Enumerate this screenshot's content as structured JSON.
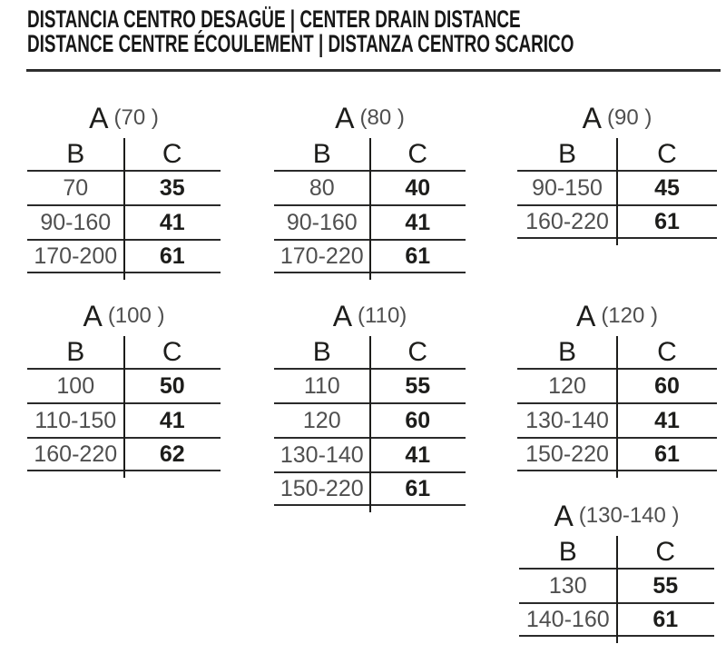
{
  "page": {
    "title_line1": "DISTANCIA CENTRO DESAGÜE | CENTER DRAIN DISTANCE",
    "title_line2": "DISTANCE CENTRE ÉCOULEMENT | DISTANZA CENTRO SCARICO"
  },
  "colors": {
    "ink": "#1d1d1b",
    "muted_gray": "#4f4f4f",
    "rule": "#2e2e2e"
  },
  "columns": {
    "b": "B",
    "c": "C"
  },
  "tables": [
    {
      "label": "A",
      "size": "(70 )",
      "rows": [
        {
          "b": "70",
          "c": "35"
        },
        {
          "b": "90-160",
          "c": "41"
        },
        {
          "b": "170-200",
          "c": "61"
        }
      ]
    },
    {
      "label": "A",
      "size": "(80 )",
      "rows": [
        {
          "b": "80",
          "c": "40"
        },
        {
          "b": "90-160",
          "c": "41"
        },
        {
          "b": "170-220",
          "c": "61"
        }
      ]
    },
    {
      "label": "A",
      "size": "(90 )",
      "rows": [
        {
          "b": "90-150",
          "c": "45"
        },
        {
          "b": "160-220",
          "c": "61"
        }
      ]
    },
    {
      "label": "A",
      "size": "(100 )",
      "rows": [
        {
          "b": "100",
          "c": "50"
        },
        {
          "b": "110-150",
          "c": "41"
        },
        {
          "b": "160-220",
          "c": "62"
        }
      ]
    },
    {
      "label": "A",
      "size": "(110)",
      "rows": [
        {
          "b": "110",
          "c": "55"
        },
        {
          "b": "120",
          "c": "60"
        },
        {
          "b": "130-140",
          "c": "41"
        },
        {
          "b": "150-220",
          "c": "61"
        }
      ]
    },
    {
      "label": "A",
      "size": "(120 )",
      "rows": [
        {
          "b": "120",
          "c": "60"
        },
        {
          "b": "130-140",
          "c": "41"
        },
        {
          "b": "150-220",
          "c": "61"
        }
      ]
    },
    {
      "label": "A",
      "size": "(130-140 )",
      "rows": [
        {
          "b": "130",
          "c": "55"
        },
        {
          "b": "140-160",
          "c": "61"
        }
      ]
    }
  ]
}
